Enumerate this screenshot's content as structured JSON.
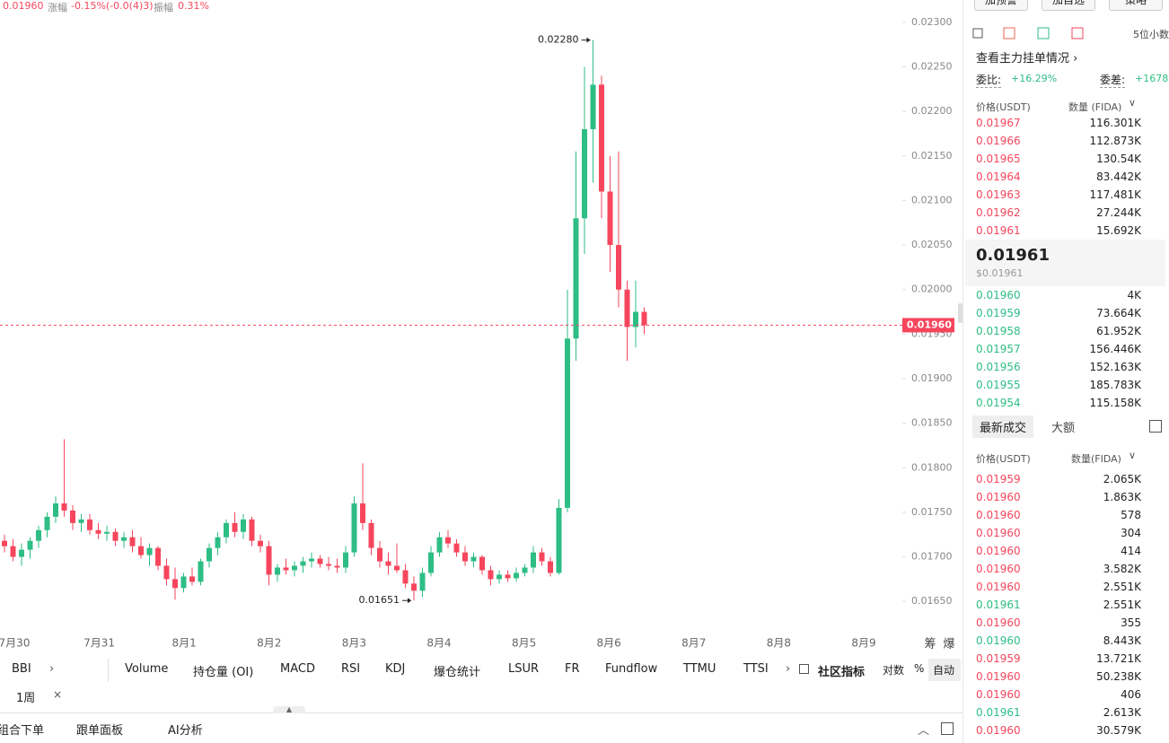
{
  "header": {
    "price": "0.01960",
    "change_label": "涨幅",
    "change": "-0.15%(-0.0(4)3)",
    "amplitude_label": "振幅",
    "amplitude": "0.31%"
  },
  "chart_data": {
    "type": "candlestick",
    "categories": [
      "7月30",
      "7月31",
      "8月1",
      "8月2",
      "8月3",
      "8月4",
      "8月5",
      "8月6",
      "8月7",
      "8月8",
      "8月9"
    ],
    "candles": [
      [
        0.01718,
        0.01725,
        0.01705,
        0.01712
      ],
      [
        0.01712,
        0.0172,
        0.01695,
        0.017
      ],
      [
        0.017,
        0.01715,
        0.0169,
        0.01708
      ],
      [
        0.01708,
        0.01722,
        0.01698,
        0.01718
      ],
      [
        0.01718,
        0.01735,
        0.0171,
        0.0173
      ],
      [
        0.0173,
        0.0175,
        0.01722,
        0.01745
      ],
      [
        0.01745,
        0.01768,
        0.01738,
        0.0176
      ],
      [
        0.0176,
        0.01832,
        0.01745,
        0.01752
      ],
      [
        0.01752,
        0.01758,
        0.0173,
        0.01738
      ],
      [
        0.01738,
        0.01748,
        0.01728,
        0.01742
      ],
      [
        0.01742,
        0.01748,
        0.01725,
        0.0173
      ],
      [
        0.0173,
        0.01738,
        0.0172,
        0.01726
      ],
      [
        0.01726,
        0.01735,
        0.01718,
        0.01728
      ],
      [
        0.01728,
        0.01732,
        0.01712,
        0.01718
      ],
      [
        0.01718,
        0.01728,
        0.0171,
        0.01722
      ],
      [
        0.01722,
        0.0173,
        0.01705,
        0.01712
      ],
      [
        0.01712,
        0.01722,
        0.01698,
        0.01702
      ],
      [
        0.01702,
        0.01715,
        0.0169,
        0.0171
      ],
      [
        0.0171,
        0.01712,
        0.01685,
        0.0169
      ],
      [
        0.0169,
        0.01698,
        0.01668,
        0.01675
      ],
      [
        0.01675,
        0.01688,
        0.01652,
        0.01665
      ],
      [
        0.01665,
        0.01682,
        0.0166,
        0.01678
      ],
      [
        0.01678,
        0.01688,
        0.01668,
        0.01672
      ],
      [
        0.01672,
        0.01698,
        0.01668,
        0.01695
      ],
      [
        0.01695,
        0.01715,
        0.01688,
        0.0171
      ],
      [
        0.0171,
        0.01728,
        0.01702,
        0.01722
      ],
      [
        0.01722,
        0.01742,
        0.01715,
        0.01738
      ],
      [
        0.01738,
        0.0175,
        0.01722,
        0.01728
      ],
      [
        0.01728,
        0.01748,
        0.0172,
        0.01742
      ],
      [
        0.01742,
        0.01745,
        0.01712,
        0.01718
      ],
      [
        0.01718,
        0.01725,
        0.01705,
        0.01712
      ],
      [
        0.01712,
        0.01718,
        0.01668,
        0.0168
      ],
      [
        0.0168,
        0.01692,
        0.01672,
        0.01688
      ],
      [
        0.01688,
        0.01698,
        0.0168,
        0.01685
      ],
      [
        0.01685,
        0.01695,
        0.01678,
        0.0169
      ],
      [
        0.0169,
        0.017,
        0.01682,
        0.01695
      ],
      [
        0.01695,
        0.01705,
        0.01688,
        0.01698
      ],
      [
        0.01698,
        0.01702,
        0.01688,
        0.01692
      ],
      [
        0.01692,
        0.017,
        0.01685,
        0.0169
      ],
      [
        0.0169,
        0.01698,
        0.01682,
        0.01688
      ],
      [
        0.01688,
        0.01712,
        0.01682,
        0.01705
      ],
      [
        0.01705,
        0.01768,
        0.017,
        0.0176
      ],
      [
        0.0176,
        0.01805,
        0.0173,
        0.01738
      ],
      [
        0.01738,
        0.01742,
        0.01702,
        0.0171
      ],
      [
        0.0171,
        0.01718,
        0.01688,
        0.01695
      ],
      [
        0.01695,
        0.01705,
        0.0168,
        0.0169
      ],
      [
        0.0169,
        0.01715,
        0.01682,
        0.01685
      ],
      [
        0.01685,
        0.01692,
        0.01665,
        0.0167
      ],
      [
        0.0167,
        0.01678,
        0.01651,
        0.01662
      ],
      [
        0.01662,
        0.01688,
        0.01655,
        0.01682
      ],
      [
        0.01682,
        0.01712,
        0.01678,
        0.01705
      ],
      [
        0.01705,
        0.01728,
        0.017,
        0.01722
      ],
      [
        0.01722,
        0.0173,
        0.0171,
        0.01715
      ],
      [
        0.01715,
        0.0172,
        0.017,
        0.01705
      ],
      [
        0.01705,
        0.01712,
        0.0169,
        0.01695
      ],
      [
        0.01695,
        0.01705,
        0.01688,
        0.017
      ],
      [
        0.017,
        0.01702,
        0.0168,
        0.01685
      ],
      [
        0.01685,
        0.0169,
        0.01668,
        0.01675
      ],
      [
        0.01675,
        0.01685,
        0.0167,
        0.0168
      ],
      [
        0.0168,
        0.01685,
        0.01672,
        0.01676
      ],
      [
        0.01676,
        0.01688,
        0.01672,
        0.01682
      ],
      [
        0.01682,
        0.01692,
        0.01678,
        0.01688
      ],
      [
        0.01688,
        0.01712,
        0.01682,
        0.01705
      ],
      [
        0.01705,
        0.0171,
        0.0169,
        0.01695
      ],
      [
        0.01695,
        0.017,
        0.01678,
        0.01682
      ],
      [
        0.01682,
        0.01765,
        0.0168,
        0.01755
      ],
      [
        0.01755,
        0.02,
        0.0175,
        0.01945
      ],
      [
        0.01945,
        0.02155,
        0.0192,
        0.0208
      ],
      [
        0.0208,
        0.0225,
        0.0204,
        0.0218
      ],
      [
        0.0218,
        0.0228,
        0.0212,
        0.0223
      ],
      [
        0.0223,
        0.0224,
        0.0208,
        0.0211
      ],
      [
        0.0211,
        0.0215,
        0.0202,
        0.0205
      ],
      [
        0.0205,
        0.02155,
        0.0198,
        0.02
      ],
      [
        0.02,
        0.0201,
        0.0192,
        0.01958
      ],
      [
        0.01958,
        0.0201,
        0.01935,
        0.01975
      ],
      [
        0.01975,
        0.0198,
        0.0195,
        0.0196
      ]
    ],
    "ylim": [
      0.0162,
      0.02325
    ],
    "yticks": [
      {
        "value": 0.023,
        "label": "0.02300"
      },
      {
        "value": 0.0225,
        "label": "0.02250"
      },
      {
        "value": 0.022,
        "label": "0.02200"
      },
      {
        "value": 0.0215,
        "label": "0.02150"
      },
      {
        "value": 0.021,
        "label": "0.02100"
      },
      {
        "value": 0.0205,
        "label": "0.02050"
      },
      {
        "value": 0.02,
        "label": "0.02000"
      },
      {
        "value": 0.0195,
        "label": "0.01950"
      },
      {
        "value": 0.019,
        "label": "0.01900"
      },
      {
        "value": 0.0185,
        "label": "0.01850"
      },
      {
        "value": 0.018,
        "label": "0.01800"
      },
      {
        "value": 0.0175,
        "label": "0.01750"
      },
      {
        "value": 0.017,
        "label": "0.01700"
      },
      {
        "value": 0.0165,
        "label": "0.01650"
      }
    ],
    "up_color": "#2ebd85",
    "down_color": "#f6465d",
    "annotations": {
      "high": "0.02280",
      "low": "0.01651"
    },
    "last_price": {
      "value": 0.0196,
      "label": "0.01960"
    },
    "axis_icons": [
      "筹",
      "爆"
    ]
  },
  "panel": {
    "buttons": [
      "加预警",
      "加自选",
      "策略"
    ],
    "decimals": "5位小数",
    "depth_link": "查看主力挂单情况 ›",
    "ratio_label": "委比:",
    "ratio": "+16.29%",
    "diff_label": "委差:",
    "diff": "+1678",
    "book_header": [
      "价格(USDT)",
      "数量 (FIDA)"
    ],
    "ask_color": "#f6465d",
    "bid_color": "#2ebd85",
    "asks": [
      [
        "0.01967",
        "116.301K"
      ],
      [
        "0.01966",
        "112.873K"
      ],
      [
        "0.01965",
        "130.54K"
      ],
      [
        "0.01964",
        "83.442K"
      ],
      [
        "0.01963",
        "117.481K"
      ],
      [
        "0.01962",
        "27.244K"
      ],
      [
        "0.01961",
        "15.692K"
      ]
    ],
    "mid": "0.01961",
    "mid_usd": "$0.01961",
    "bids": [
      [
        "0.01960",
        "4K"
      ],
      [
        "0.01959",
        "73.664K"
      ],
      [
        "0.01958",
        "61.952K"
      ],
      [
        "0.01957",
        "156.446K"
      ],
      [
        "0.01956",
        "152.163K"
      ],
      [
        "0.01955",
        "185.783K"
      ],
      [
        "0.01954",
        "115.158K"
      ]
    ],
    "tabs": [
      "最新成交",
      "大额"
    ],
    "trades_header": [
      "价格(USDT)",
      "数量(FIDA)"
    ],
    "trades": [
      [
        "0.01959",
        "2.065K",
        "#f6465d"
      ],
      [
        "0.01960",
        "1.863K",
        "#f6465d"
      ],
      [
        "0.01960",
        "578",
        "#f6465d"
      ],
      [
        "0.01960",
        "304",
        "#f6465d"
      ],
      [
        "0.01960",
        "414",
        "#f6465d"
      ],
      [
        "0.01960",
        "3.582K",
        "#f6465d"
      ],
      [
        "0.01960",
        "2.551K",
        "#f6465d"
      ],
      [
        "0.01961",
        "2.551K",
        "#2ebd85"
      ],
      [
        "0.01960",
        "355",
        "#f6465d"
      ],
      [
        "0.01960",
        "8.443K",
        "#2ebd85"
      ],
      [
        "0.01959",
        "13.721K",
        "#f6465d"
      ],
      [
        "0.01960",
        "50.238K",
        "#f6465d"
      ],
      [
        "0.01960",
        "406",
        "#f6465d"
      ],
      [
        "0.01961",
        "2.613K",
        "#2ebd85"
      ],
      [
        "0.01960",
        "30.579K",
        "#f6465d"
      ]
    ]
  },
  "toolbar": {
    "left": "BBI",
    "indicators": [
      "Volume",
      "持仓量 (OI)",
      "MACD",
      "RSI",
      "KDJ",
      "爆仓统计",
      "LSUR",
      "FR",
      "Fundflow",
      "TTMU",
      "TTSI"
    ],
    "community": "社区指标",
    "options": [
      "对数",
      "%",
      "自动"
    ],
    "timeframe": "1周"
  },
  "footer": [
    "组合下单",
    "跟单面板",
    "AI分析"
  ]
}
